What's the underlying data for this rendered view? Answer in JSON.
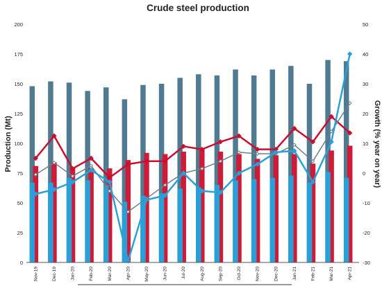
{
  "chart_data": {
    "type": "bar",
    "title": "Crude steel production",
    "ylabel": "Production (Mt)",
    "y2label": "Growth (% year on year)",
    "ylim": [
      0,
      200
    ],
    "y2lim": [
      -30,
      50
    ],
    "yticks": [
      0,
      25,
      50,
      75,
      100,
      125,
      150,
      175,
      200
    ],
    "y2ticks": [
      -30,
      -20,
      -10,
      0,
      10,
      20,
      30,
      40,
      50
    ],
    "grid": false,
    "legend": "none",
    "categories": [
      "Nov-19",
      "Dec-19",
      "Jan-20",
      "Feb-20",
      "Mar-20",
      "Apr-20",
      "May-20",
      "Jun-20",
      "Jul-20",
      "Aug-20",
      "Sep-20",
      "Oct-20",
      "Nov-20",
      "Dec-20",
      "Jan-21",
      "Feb-21",
      "Mar-21",
      "Apr-21"
    ],
    "bar_series": [
      {
        "color": "#4f7a92",
        "values": [
          148,
          152,
          151,
          144,
          147,
          137,
          149,
          150,
          155,
          158,
          157,
          162,
          157,
          162,
          165,
          150,
          170,
          169
        ]
      },
      {
        "color": "#cf1a38",
        "values": [
          81,
          84,
          80,
          79,
          79,
          86,
          92,
          91,
          93,
          95,
          93,
          91,
          87,
          90,
          91,
          83,
          94,
          98
        ]
      },
      {
        "color": "#2aa0d8",
        "values": [
          67,
          67,
          71,
          69,
          65,
          51,
          56,
          58,
          62,
          63,
          65,
          69,
          70,
          71,
          73,
          67,
          76,
          71
        ]
      }
    ],
    "line_series": [
      {
        "color": "#c8102e",
        "marker": "diamond",
        "values": [
          5,
          12.5,
          1.5,
          5,
          -1.5,
          3,
          4,
          4,
          9,
          8,
          10.5,
          12.5,
          8,
          8,
          15,
          10.5,
          19,
          13.5
        ]
      },
      {
        "color": "#6b7f8c",
        "marker": "diamond",
        "values": [
          -0.5,
          3.5,
          -1,
          2.5,
          -6,
          -13,
          -8.5,
          -4,
          0,
          1.5,
          4,
          7,
          6.5,
          6.5,
          9.5,
          4,
          14,
          23.5
        ]
      },
      {
        "color": "#2aa0d8",
        "marker": "diamond",
        "values": [
          -7,
          -5.5,
          -3,
          1,
          -3,
          -29.5,
          -9,
          -7.5,
          0,
          -6,
          -6.5,
          0,
          3,
          7,
          7.5,
          -3,
          10.5,
          40
        ]
      }
    ]
  }
}
